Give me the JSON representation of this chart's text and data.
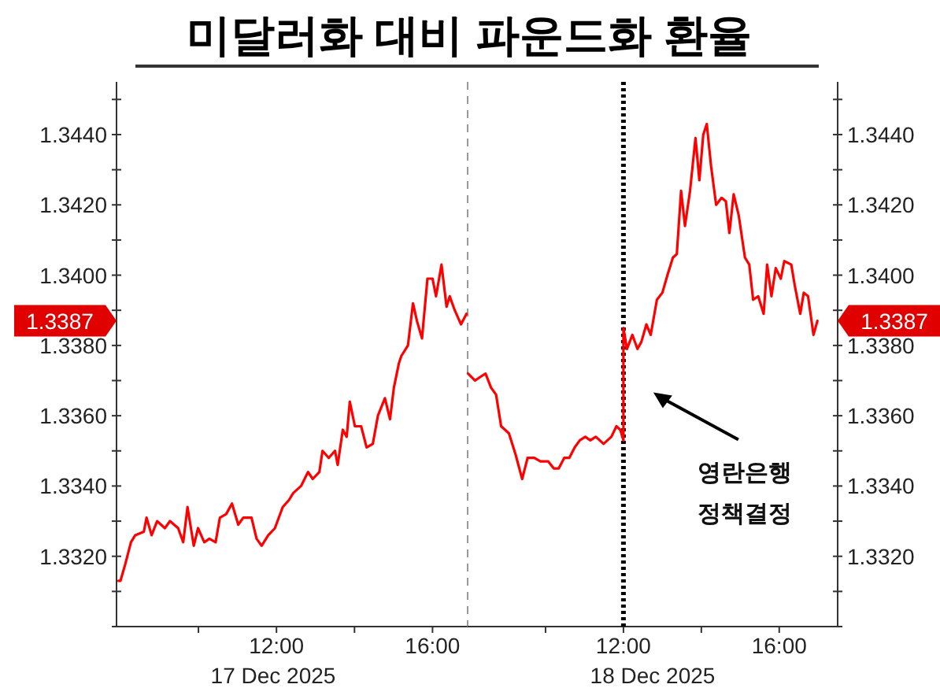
{
  "chart_data": [
    {
      "type": "line",
      "title": "미달러화 대비 파운드화 환율",
      "xlabel": "17 Dec 2025",
      "xlim": [
        7.9,
        16.9
      ],
      "xticks": [
        {
          "value": 10,
          "label": null
        },
        {
          "value": 12,
          "label": "12:00"
        },
        {
          "value": 14,
          "label": null
        },
        {
          "value": 16,
          "label": "16:00"
        }
      ],
      "ylim": [
        1.33,
        1.3455
      ],
      "yticks": [
        {
          "value": 1.33,
          "label": null
        },
        {
          "value": 1.331,
          "label": null
        },
        {
          "value": 1.332,
          "label": "1.3320"
        },
        {
          "value": 1.333,
          "label": null
        },
        {
          "value": 1.334,
          "label": "1.3340"
        },
        {
          "value": 1.335,
          "label": null
        },
        {
          "value": 1.336,
          "label": "1.3360"
        },
        {
          "value": 1.337,
          "label": null
        },
        {
          "value": 1.338,
          "label": "1.3380"
        },
        {
          "value": 1.339,
          "label": null
        },
        {
          "value": 1.34,
          "label": "1.3400"
        },
        {
          "value": 1.341,
          "label": null
        },
        {
          "value": 1.342,
          "label": "1.3420"
        },
        {
          "value": 1.343,
          "label": null
        },
        {
          "value": 1.344,
          "label": "1.3440"
        },
        {
          "value": 1.345,
          "label": null
        }
      ],
      "grid": false,
      "annotations": [
        "1.3387"
      ],
      "series": [
        {
          "color": "#ff0000",
          "x": [
            7.95,
            8.0,
            8.13,
            8.27,
            8.38,
            8.6,
            8.67,
            8.8,
            8.94,
            9.14,
            9.27,
            9.48,
            9.61,
            9.72,
            9.88,
            9.99,
            10.15,
            10.28,
            10.44,
            10.55,
            10.71,
            10.86,
            11.02,
            11.15,
            11.36,
            11.49,
            11.62,
            11.79,
            11.96,
            12.16,
            12.32,
            12.43,
            12.63,
            12.81,
            12.93,
            13.1,
            13.18,
            13.34,
            13.5,
            13.57,
            13.7,
            13.8,
            13.88,
            14.01,
            14.17,
            14.31,
            14.47,
            14.6,
            14.78,
            14.91,
            15.01,
            15.14,
            15.2,
            15.37,
            15.5,
            15.6,
            15.73,
            15.87,
            16.0,
            16.09,
            16.23,
            16.36,
            16.44,
            16.57,
            16.73,
            16.87
          ],
          "values": [
            1.3313,
            1.3313,
            1.3318,
            1.3324,
            1.3326,
            1.3327,
            1.3331,
            1.3326,
            1.333,
            1.3328,
            1.333,
            1.3328,
            1.3324,
            1.3334,
            1.3323,
            1.3328,
            1.3324,
            1.3325,
            1.3324,
            1.3331,
            1.3332,
            1.3335,
            1.3329,
            1.3331,
            1.3331,
            1.3325,
            1.3323,
            1.3326,
            1.3328,
            1.3334,
            1.3336,
            1.3338,
            1.334,
            1.3344,
            1.3342,
            1.3344,
            1.335,
            1.3348,
            1.335,
            1.3346,
            1.3356,
            1.3354,
            1.3364,
            1.3357,
            1.3357,
            1.3351,
            1.3352,
            1.336,
            1.3365,
            1.3359,
            1.3368,
            1.3375,
            1.3377,
            1.338,
            1.3392,
            1.3387,
            1.3382,
            1.3399,
            1.3399,
            1.3394,
            1.3403,
            1.3391,
            1.3394,
            1.339,
            1.3386,
            1.3389
          ]
        }
      ]
    },
    {
      "type": "line",
      "xlabel": "18 Dec 2025",
      "xlim": [
        8,
        17.5
      ],
      "xticks": [
        {
          "value": 10,
          "label": null
        },
        {
          "value": 12,
          "label": "12:00"
        },
        {
          "value": 14,
          "label": null
        },
        {
          "value": 16,
          "label": "16:00"
        }
      ],
      "ylim": [
        1.33,
        1.3455
      ],
      "yticks": [
        {
          "value": 1.33,
          "label": null
        },
        {
          "value": 1.331,
          "label": null
        },
        {
          "value": 1.332,
          "label": "1.3320"
        },
        {
          "value": 1.333,
          "label": null
        },
        {
          "value": 1.334,
          "label": "1.3340"
        },
        {
          "value": 1.335,
          "label": null
        },
        {
          "value": 1.336,
          "label": "1.3360"
        },
        {
          "value": 1.337,
          "label": null
        },
        {
          "value": 1.338,
          "label": "1.3380"
        },
        {
          "value": 1.339,
          "label": null
        },
        {
          "value": 1.34,
          "label": "1.3400"
        },
        {
          "value": 1.341,
          "label": null
        },
        {
          "value": 1.342,
          "label": "1.3420"
        },
        {
          "value": 1.343,
          "label": null
        },
        {
          "value": 1.344,
          "label": "1.3440"
        },
        {
          "value": 1.345,
          "label": null
        }
      ],
      "grid": false,
      "ref_lines": [
        {
          "axis": "x",
          "value": 12,
          "color": "#000000",
          "line_style": "dotted"
        }
      ],
      "annotations": [
        "1.3387",
        "영란은행\n정책결정"
      ],
      "series": [
        {
          "color": "#ff0000",
          "x": [
            8.01,
            8.19,
            8.32,
            8.46,
            8.6,
            8.73,
            8.86,
            9.06,
            9.23,
            9.4,
            9.54,
            9.71,
            9.87,
            10.07,
            10.21,
            10.34,
            10.48,
            10.61,
            10.75,
            10.88,
            11.02,
            11.15,
            11.29,
            11.49,
            11.69,
            11.82,
            11.92,
            12.0,
            12.0,
            12.09,
            12.23,
            12.36,
            12.46,
            12.59,
            12.7,
            12.86,
            13.0,
            13.13,
            13.27,
            13.37,
            13.48,
            13.58,
            13.71,
            13.85,
            13.95,
            14.05,
            14.14,
            14.25,
            14.38,
            14.52,
            14.63,
            14.72,
            14.83,
            14.96,
            15.12,
            15.23,
            15.33,
            15.46,
            15.6,
            15.69,
            15.8,
            15.91,
            16.04,
            16.13,
            16.31,
            16.4,
            16.54,
            16.63,
            16.74,
            16.88,
            16.98
          ],
          "values": [
            1.3372,
            1.337,
            1.3371,
            1.3372,
            1.3368,
            1.3366,
            1.3357,
            1.3355,
            1.3349,
            1.3342,
            1.3348,
            1.3348,
            1.3347,
            1.3347,
            1.3345,
            1.3345,
            1.3348,
            1.3348,
            1.3351,
            1.3353,
            1.3354,
            1.3353,
            1.3354,
            1.3352,
            1.3354,
            1.3357,
            1.3356,
            1.3353,
            1.3385,
            1.3379,
            1.3383,
            1.3379,
            1.3381,
            1.3386,
            1.3383,
            1.3393,
            1.3395,
            1.34,
            1.3405,
            1.3406,
            1.3424,
            1.3414,
            1.3424,
            1.3439,
            1.3427,
            1.344,
            1.3443,
            1.3431,
            1.342,
            1.3422,
            1.3421,
            1.3412,
            1.3423,
            1.3417,
            1.3405,
            1.3403,
            1.3393,
            1.3394,
            1.3389,
            1.3403,
            1.3394,
            1.3402,
            1.3399,
            1.3404,
            1.3403,
            1.3397,
            1.3389,
            1.3395,
            1.3394,
            1.3383,
            1.3387
          ]
        }
      ]
    }
  ]
}
